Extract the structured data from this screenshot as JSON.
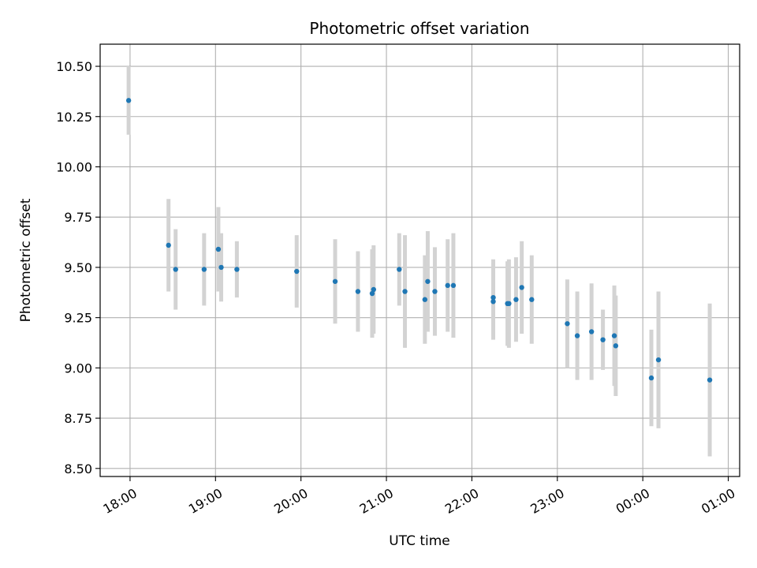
{
  "chart_data": {
    "type": "scatter",
    "title": "Photometric offset variation",
    "xlabel": "UTC time",
    "ylabel": "Photometric offset",
    "grid": true,
    "xlim": [
      "17:39",
      "01:08"
    ],
    "ylim": [
      8.46,
      10.61
    ],
    "x_ticks": [
      "18:00",
      "19:00",
      "20:00",
      "21:00",
      "22:00",
      "23:00",
      "00:00",
      "01:00"
    ],
    "y_ticks": [
      "8.50",
      "8.75",
      "9.00",
      "9.25",
      "9.50",
      "9.75",
      "10.00",
      "10.25",
      "10.50"
    ],
    "colors": {
      "points": "#1f77b4",
      "error_bars": "#d3d3d3",
      "grid": "#b0b0b0"
    },
    "points": [
      {
        "x": "17:59",
        "y": 10.33,
        "err": 0.17
      },
      {
        "x": "18:27",
        "y": 9.61,
        "err": 0.23
      },
      {
        "x": "18:32",
        "y": 9.49,
        "err": 0.2
      },
      {
        "x": "18:52",
        "y": 9.49,
        "err": 0.18
      },
      {
        "x": "19:02",
        "y": 9.59,
        "err": 0.21
      },
      {
        "x": "19:04",
        "y": 9.5,
        "err": 0.17
      },
      {
        "x": "19:15",
        "y": 9.49,
        "err": 0.14
      },
      {
        "x": "19:57",
        "y": 9.48,
        "err": 0.18
      },
      {
        "x": "20:24",
        "y": 9.43,
        "err": 0.21
      },
      {
        "x": "20:40",
        "y": 9.38,
        "err": 0.2
      },
      {
        "x": "20:50",
        "y": 9.37,
        "err": 0.22
      },
      {
        "x": "20:51",
        "y": 9.39,
        "err": 0.22
      },
      {
        "x": "21:09",
        "y": 9.49,
        "err": 0.18
      },
      {
        "x": "21:13",
        "y": 9.38,
        "err": 0.28
      },
      {
        "x": "21:27",
        "y": 9.34,
        "err": 0.22
      },
      {
        "x": "21:29",
        "y": 9.43,
        "err": 0.25
      },
      {
        "x": "21:34",
        "y": 9.38,
        "err": 0.22
      },
      {
        "x": "21:43",
        "y": 9.41,
        "err": 0.23
      },
      {
        "x": "21:47",
        "y": 9.41,
        "err": 0.26
      },
      {
        "x": "22:15",
        "y": 9.35,
        "err": 0.19
      },
      {
        "x": "22:15",
        "y": 9.33,
        "err": 0.19
      },
      {
        "x": "22:25",
        "y": 9.32,
        "err": 0.21
      },
      {
        "x": "22:26",
        "y": 9.32,
        "err": 0.22
      },
      {
        "x": "22:31",
        "y": 9.34,
        "err": 0.21
      },
      {
        "x": "22:35",
        "y": 9.4,
        "err": 0.23
      },
      {
        "x": "22:42",
        "y": 9.34,
        "err": 0.22
      },
      {
        "x": "23:07",
        "y": 9.22,
        "err": 0.22
      },
      {
        "x": "23:14",
        "y": 9.16,
        "err": 0.22
      },
      {
        "x": "23:24",
        "y": 9.18,
        "err": 0.24
      },
      {
        "x": "23:32",
        "y": 9.14,
        "err": 0.15
      },
      {
        "x": "23:40",
        "y": 9.16,
        "err": 0.25
      },
      {
        "x": "23:41",
        "y": 9.11,
        "err": 0.25
      },
      {
        "x": "00:06",
        "y": 8.95,
        "err": 0.24
      },
      {
        "x": "00:11",
        "y": 9.04,
        "err": 0.34
      },
      {
        "x": "00:47",
        "y": 8.94,
        "err": 0.38
      }
    ]
  }
}
